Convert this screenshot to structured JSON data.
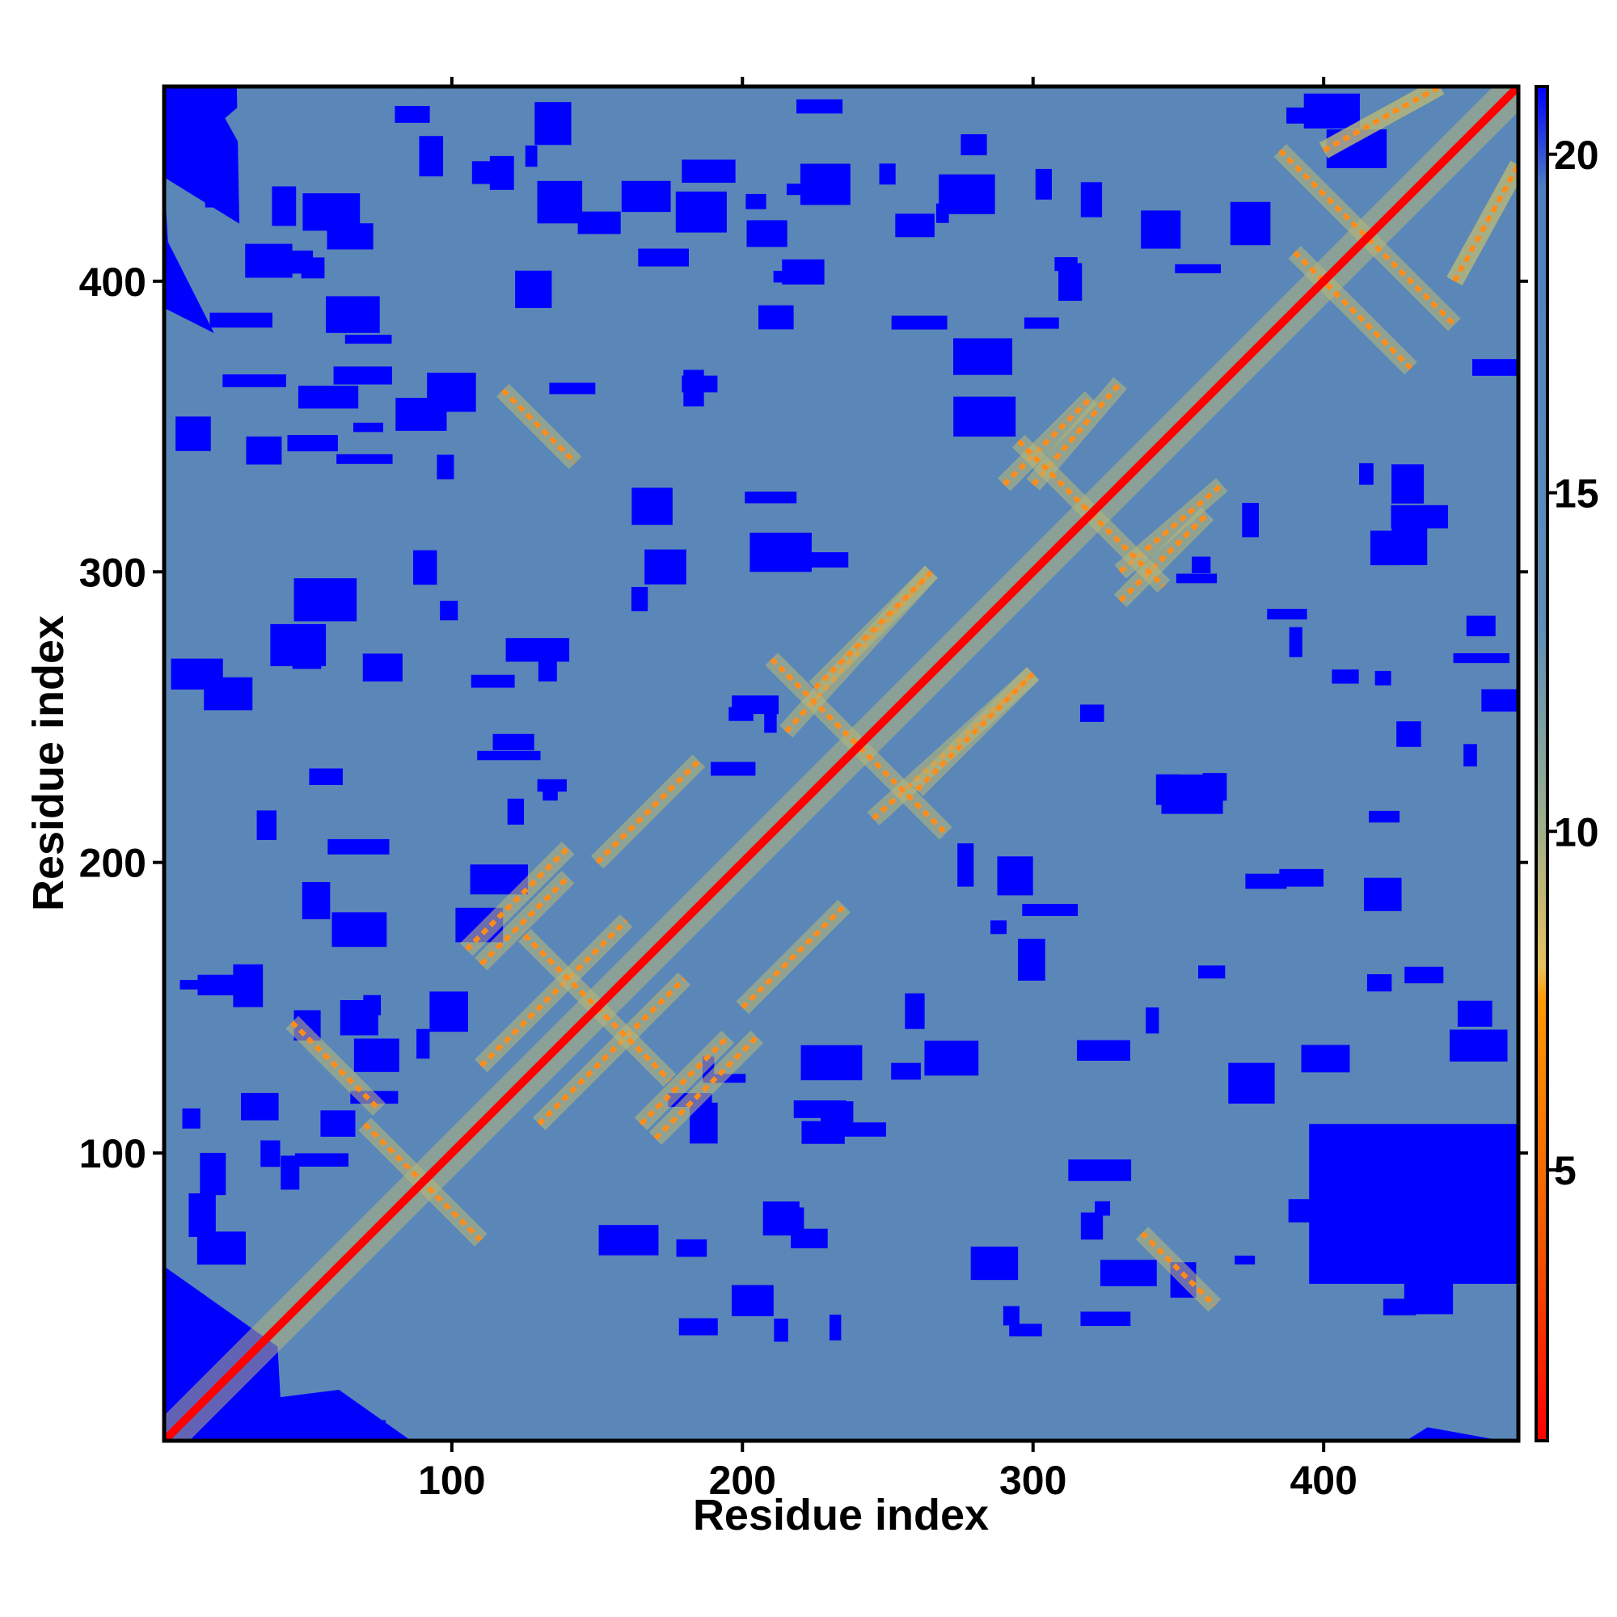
{
  "chart_data": {
    "type": "heatmap",
    "title": "",
    "xlabel": "Residue index",
    "ylabel": "Residue index",
    "x_range": [
      1,
      467
    ],
    "y_range": [
      1,
      467
    ],
    "x_ticks": [
      100,
      200,
      300,
      400
    ],
    "y_ticks": [
      100,
      200,
      300,
      400
    ],
    "colorbar": {
      "range": [
        1,
        21
      ],
      "ticks": [
        5,
        10,
        15,
        20
      ],
      "stops": [
        {
          "value": 1,
          "color": "#ff0000"
        },
        {
          "value": 4,
          "color": "#f05a00"
        },
        {
          "value": 7.5,
          "color": "#ff9900"
        },
        {
          "value": 8,
          "color": "#e8c060"
        },
        {
          "value": 10,
          "color": "#9fb08a"
        },
        {
          "value": 13,
          "color": "#5f8fb8"
        },
        {
          "value": 19.5,
          "color": "#4f7fbf"
        },
        {
          "value": 21,
          "color": "#0000ff"
        }
      ]
    },
    "colors": {
      "far": "#0000ff",
      "background": "#5a87b8",
      "near": "#ff0000",
      "contact": "#ff8c1a",
      "halo": "#b4b57a"
    },
    "features": {
      "diagonal": {
        "from": 1,
        "to": 467
      },
      "antidiagonal_contacts": [
        {
          "center": [
            415,
            415
          ],
          "length": 60
        },
        {
          "center": [
            410,
            390
          ],
          "length": 40
        },
        {
          "center": [
            320,
            320
          ],
          "length": 50
        },
        {
          "center": [
            240,
            240
          ],
          "length": 60
        },
        {
          "center": [
            150,
            150
          ],
          "length": 50
        },
        {
          "center": [
            90,
            90
          ],
          "length": 40
        },
        {
          "center": [
            60,
            130
          ],
          "length": 30
        },
        {
          "center": [
            350,
            60
          ],
          "length": 25
        },
        {
          "center": [
            130,
            350
          ],
          "length": 25
        }
      ],
      "parallel_contacts": [
        {
          "from": [
            110,
            130
          ],
          "to": [
            160,
            180
          ]
        },
        {
          "from": [
            150,
            200
          ],
          "to": [
            185,
            235
          ]
        },
        {
          "from": [
            215,
            245
          ],
          "to": [
            265,
            300
          ]
        },
        {
          "from": [
            260,
            225
          ],
          "to": [
            300,
            265
          ]
        },
        {
          "from": [
            330,
            300
          ],
          "to": [
            365,
            330
          ]
        },
        {
          "from": [
            290,
            330
          ],
          "to": [
            320,
            360
          ]
        },
        {
          "from": [
            170,
            105
          ],
          "to": [
            205,
            140
          ]
        },
        {
          "from": [
            110,
            165
          ],
          "to": [
            140,
            195
          ]
        },
        {
          "from": [
            400,
            445
          ],
          "to": [
            440,
            467
          ]
        },
        {
          "from": [
            445,
            400
          ],
          "to": [
            467,
            440
          ]
        }
      ]
    }
  }
}
